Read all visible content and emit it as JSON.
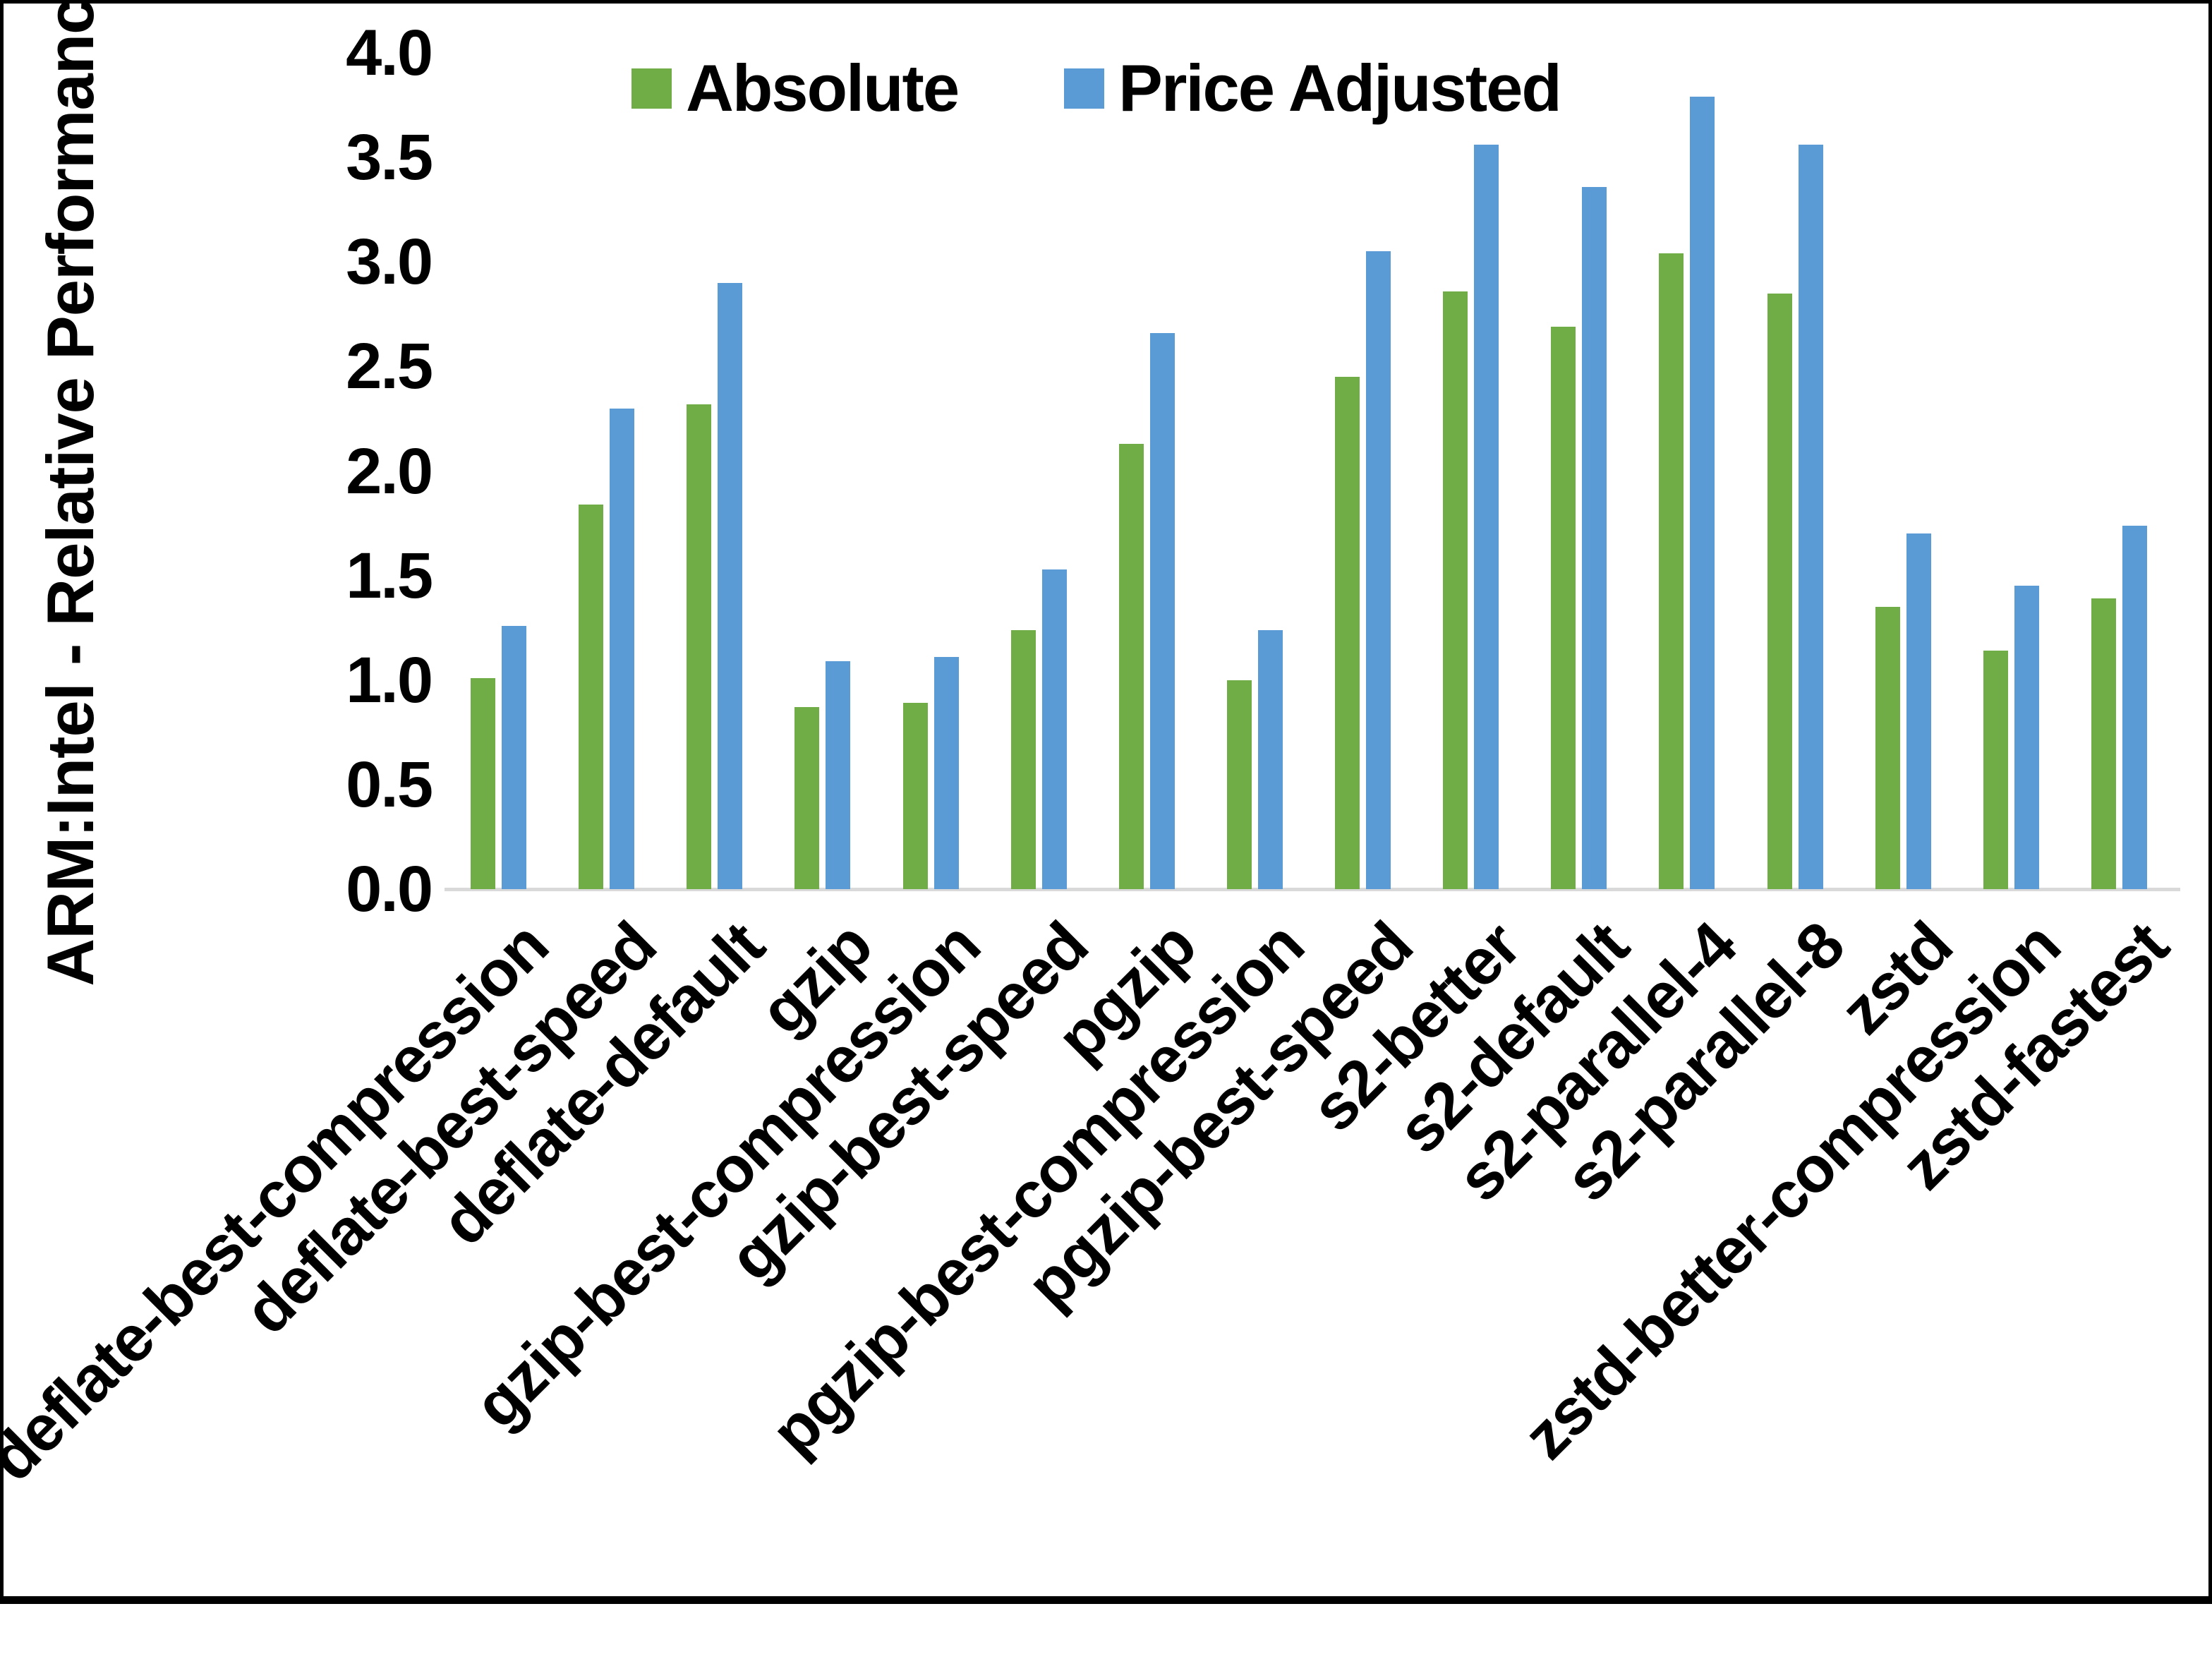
{
  "chart_data": {
    "type": "bar",
    "title": "",
    "xlabel": "",
    "ylabel": "ARM:Intel - Relative Performance",
    "ylim": [
      0,
      4.0
    ],
    "ytick_step": 0.5,
    "yticks": [
      "0.0",
      "0.5",
      "1.0",
      "1.5",
      "2.0",
      "2.5",
      "3.0",
      "3.5",
      "4.0"
    ],
    "grid": false,
    "legend_position": "top-inside-left",
    "axis_line_color": "#d9d9d9",
    "categories": [
      "deflate-best-compression",
      "deflate-best-speed",
      "deflate-default",
      "gzip",
      "gzip-best-compression",
      "gzip-best-speed",
      "pgzip",
      "pgzip-best-compression",
      "pgzip-best-speed",
      "s2-better",
      "s2-default",
      "s2-parallel-4",
      "s2-parallel-8",
      "zstd",
      "zstd-better-compression",
      "zstd-fastest"
    ],
    "series": [
      {
        "name": "Absolute",
        "color": "#70AD47",
        "values": [
          1.01,
          1.84,
          2.32,
          0.87,
          0.89,
          1.24,
          2.13,
          1.0,
          2.45,
          2.86,
          2.69,
          3.04,
          2.85,
          1.35,
          1.14,
          1.39
        ]
      },
      {
        "name": "Price Adjusted",
        "color": "#5B9BD5",
        "values": [
          1.26,
          2.3,
          2.9,
          1.09,
          1.11,
          1.53,
          2.66,
          1.24,
          3.05,
          3.56,
          3.36,
          3.79,
          3.56,
          1.7,
          1.45,
          1.74
        ]
      }
    ]
  }
}
